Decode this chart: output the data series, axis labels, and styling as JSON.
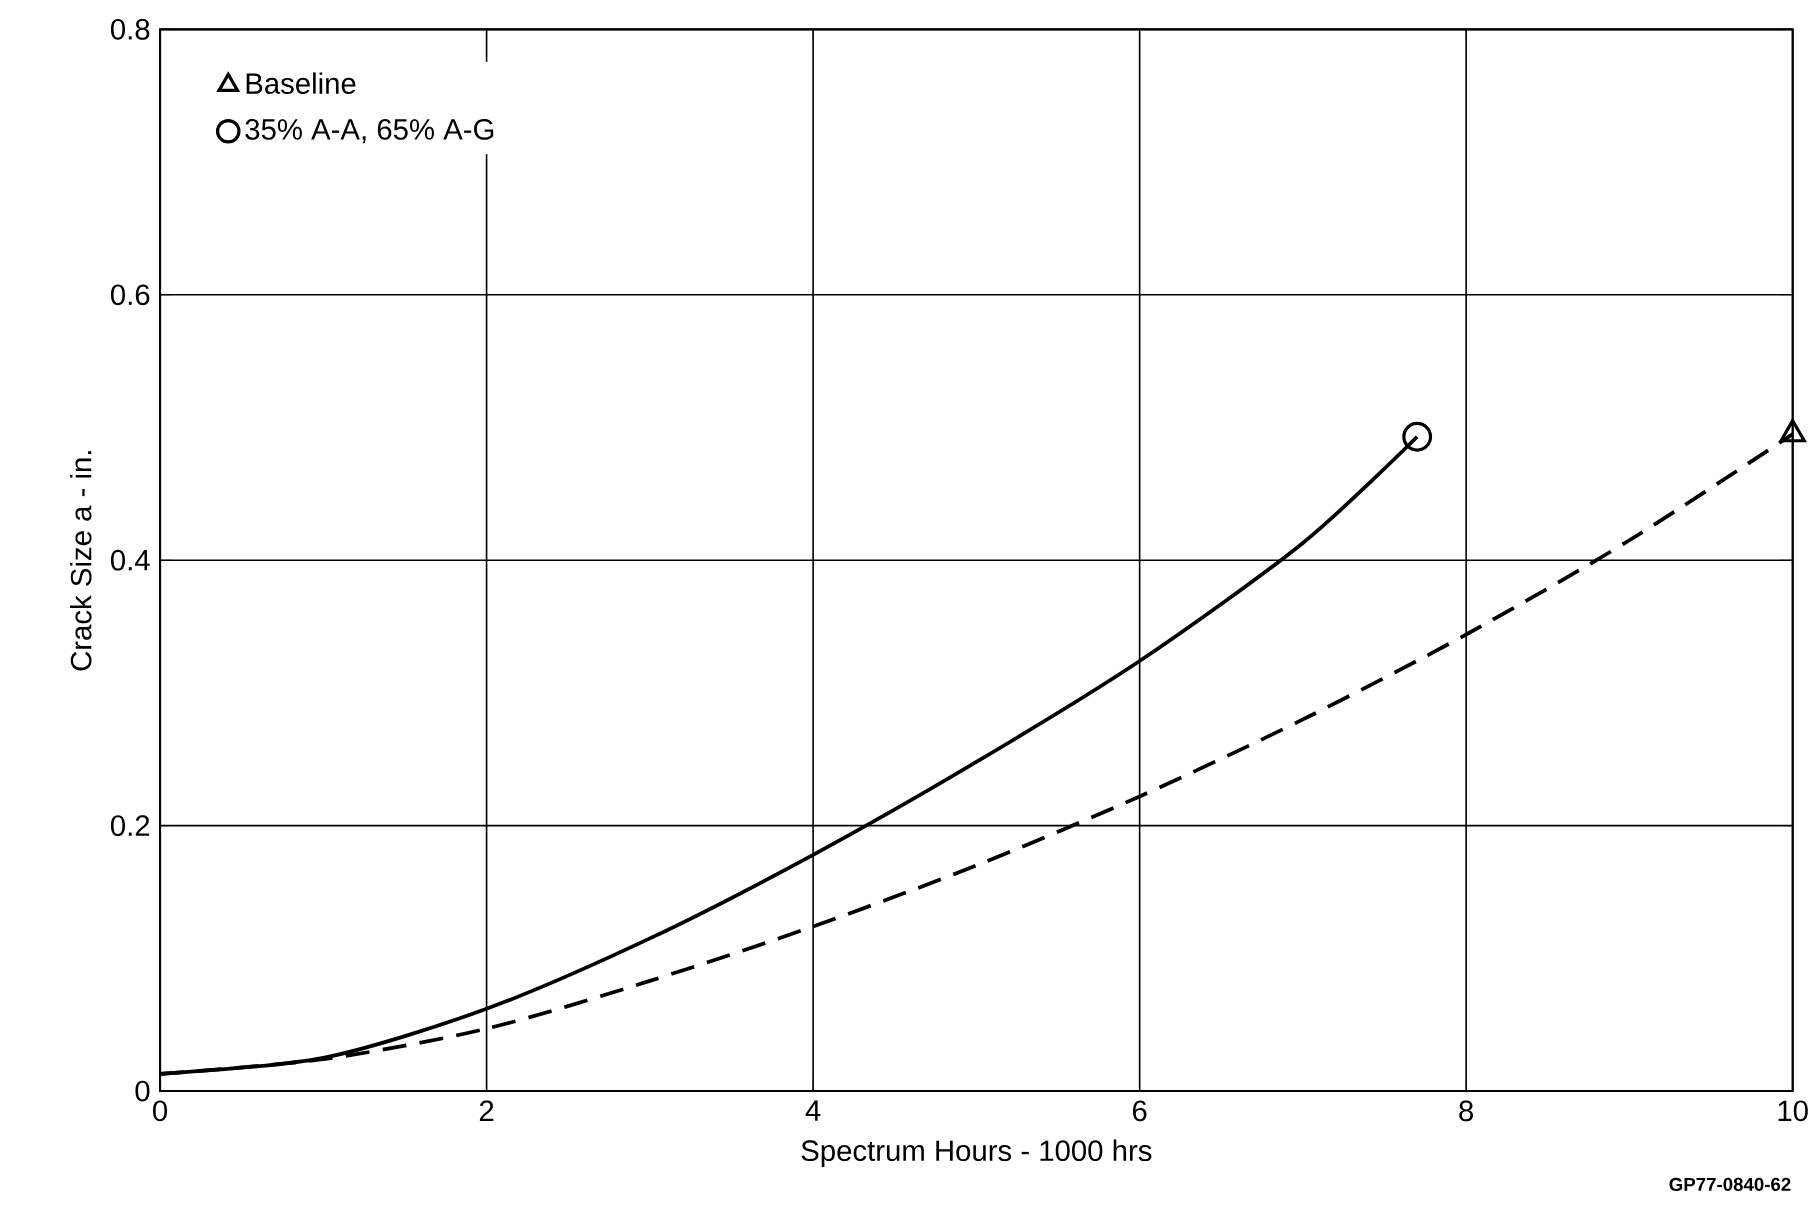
{
  "chart_data": {
    "type": "line",
    "xlabel": "Spectrum Hours - 1000 hrs",
    "ylabel": "Crack Size a - in.",
    "xlim": [
      0,
      10
    ],
    "ylim": [
      0,
      0.8
    ],
    "xticks": [
      0,
      2,
      4,
      6,
      8,
      10
    ],
    "yticks": [
      0,
      0.2,
      0.4,
      0.6,
      0.8
    ],
    "grid": true,
    "legend": "top left",
    "series": [
      {
        "color": "#000000",
        "line_style": "dashed",
        "x": [
          0,
          1,
          2,
          3,
          4,
          5,
          6,
          7,
          8,
          9,
          10
        ],
        "values": [
          0.013,
          0.024,
          0.047,
          0.083,
          0.124,
          0.17,
          0.222,
          0.28,
          0.344,
          0.415,
          0.495
        ]
      },
      {
        "color": "#000000",
        "line_style": "solid",
        "x": [
          0,
          1,
          2,
          3,
          4,
          5,
          6,
          7,
          7.7
        ],
        "values": [
          0.013,
          0.025,
          0.062,
          0.115,
          0.178,
          0.248,
          0.324,
          0.413,
          0.493
        ]
      },
      {
        "type": "scatter",
        "name": "Baseline",
        "color": "#000000",
        "marker": "triangle",
        "x": [
          10
        ],
        "values": [
          0.495
        ]
      },
      {
        "type": "scatter",
        "name": "35% A-A, 65% A-G",
        "color": "#000000",
        "marker": "circle",
        "x": [
          7.7
        ],
        "values": [
          0.493
        ]
      }
    ],
    "annotations": [
      "GP77-0840-62"
    ]
  }
}
